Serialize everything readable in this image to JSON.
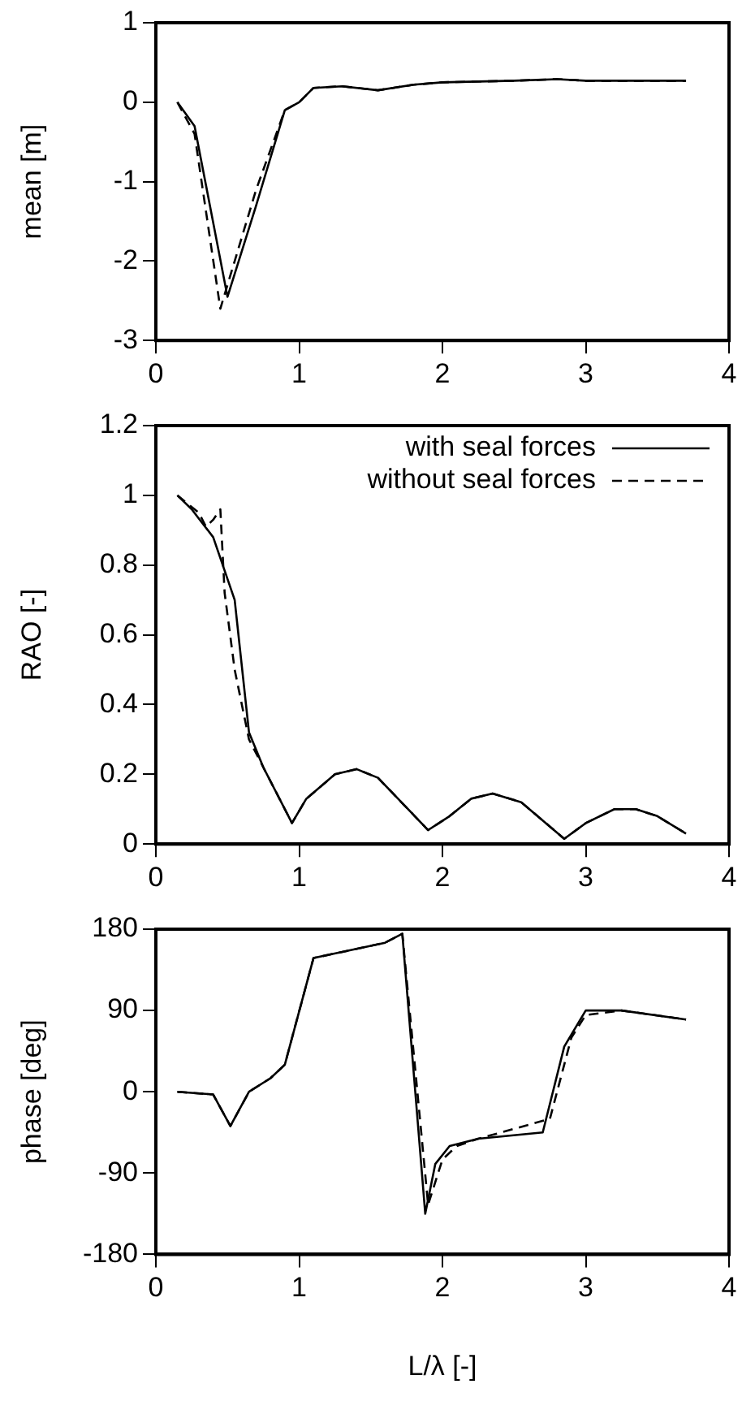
{
  "chart_data": [
    {
      "type": "line",
      "ylabel": "mean [m]",
      "xlim": [
        0,
        4
      ],
      "xticks": [
        0,
        1,
        2,
        3,
        4
      ],
      "ylim": [
        -3,
        1
      ],
      "yticks": [
        -3,
        -2,
        -1,
        0,
        1
      ],
      "grid": false,
      "legend": false,
      "marker": "none",
      "series": [
        {
          "color": "#000000",
          "line_style": "solid",
          "x": [
            0.15,
            0.27,
            0.5,
            0.7,
            0.9,
            1.0,
            1.1,
            1.3,
            1.55,
            1.8,
            2.0,
            2.5,
            2.8,
            3.0,
            3.7
          ],
          "values": [
            0.0,
            -0.3,
            -2.45,
            -1.3,
            -0.1,
            0.0,
            0.18,
            0.2,
            0.15,
            0.22,
            0.25,
            0.27,
            0.29,
            0.27,
            0.27
          ]
        },
        {
          "color": "#000000",
          "line_style": "dashed",
          "x": [
            0.15,
            0.27,
            0.45,
            0.7,
            0.9,
            1.0,
            1.1,
            1.3,
            1.55,
            1.8,
            2.0,
            2.5,
            2.8,
            3.0,
            3.7
          ],
          "values": [
            0.0,
            -0.4,
            -2.6,
            -1.1,
            -0.1,
            0.0,
            0.18,
            0.2,
            0.15,
            0.22,
            0.25,
            0.27,
            0.29,
            0.27,
            0.27
          ]
        }
      ]
    },
    {
      "type": "line",
      "ylabel": "RAO [-]",
      "xlim": [
        0,
        4
      ],
      "xticks": [
        0,
        1,
        2,
        3,
        4
      ],
      "ylim": [
        0,
        1.2
      ],
      "yticks": [
        0,
        0.2,
        0.4,
        0.6,
        0.8,
        1,
        1.2
      ],
      "grid": false,
      "legend": "top right",
      "marker": "none",
      "series": [
        {
          "name": "with seal forces",
          "color": "#000000",
          "line_style": "solid",
          "x": [
            0.15,
            0.25,
            0.4,
            0.5,
            0.55,
            0.65,
            0.75,
            0.95,
            1.05,
            1.25,
            1.4,
            1.55,
            1.9,
            2.05,
            2.2,
            2.35,
            2.55,
            2.85,
            3.0,
            3.2,
            3.35,
            3.5,
            3.7
          ],
          "values": [
            1.0,
            0.96,
            0.88,
            0.76,
            0.7,
            0.32,
            0.22,
            0.06,
            0.13,
            0.2,
            0.215,
            0.19,
            0.04,
            0.08,
            0.13,
            0.145,
            0.12,
            0.015,
            0.06,
            0.1,
            0.1,
            0.08,
            0.03
          ]
        },
        {
          "name": "without seal forces",
          "color": "#000000",
          "line_style": "dashed",
          "x": [
            0.15,
            0.3,
            0.35,
            0.4,
            0.45,
            0.48,
            0.55,
            0.65,
            0.75,
            0.95,
            1.05,
            1.25,
            1.4,
            1.55,
            1.9,
            2.05,
            2.2,
            2.35,
            2.55,
            2.85,
            3.0,
            3.2,
            3.35,
            3.5,
            3.7
          ],
          "values": [
            1.0,
            0.95,
            0.91,
            0.93,
            0.96,
            0.72,
            0.5,
            0.3,
            0.22,
            0.06,
            0.13,
            0.2,
            0.215,
            0.19,
            0.04,
            0.08,
            0.13,
            0.145,
            0.12,
            0.015,
            0.06,
            0.1,
            0.1,
            0.08,
            0.03
          ]
        }
      ]
    },
    {
      "type": "line",
      "ylabel": "phase [deg]",
      "xlabel": "L/λ [-]",
      "xlim": [
        0,
        4
      ],
      "xticks": [
        0,
        1,
        2,
        3,
        4
      ],
      "ylim": [
        -180,
        180
      ],
      "yticks": [
        -180,
        -90,
        0,
        90,
        180
      ],
      "grid": false,
      "legend": false,
      "marker": "none",
      "series": [
        {
          "color": "#000000",
          "line_style": "solid",
          "x": [
            0.15,
            0.4,
            0.52,
            0.65,
            0.8,
            0.9,
            1.1,
            1.6,
            1.72,
            1.88,
            1.95,
            2.05,
            2.25,
            2.7,
            2.85,
            3.0,
            3.25,
            3.7
          ],
          "values": [
            0,
            -3,
            -38,
            0,
            15,
            30,
            148,
            165,
            175,
            -135,
            -80,
            -60,
            -52,
            -45,
            50,
            90,
            90,
            80
          ]
        },
        {
          "color": "#000000",
          "line_style": "dashed",
          "x": [
            0.15,
            0.4,
            0.52,
            0.65,
            0.8,
            0.9,
            1.1,
            1.6,
            1.72,
            1.9,
            2.0,
            2.1,
            2.25,
            2.75,
            2.9,
            3.0,
            3.25,
            3.7
          ],
          "values": [
            0,
            -3,
            -38,
            0,
            15,
            30,
            148,
            165,
            175,
            -125,
            -75,
            -60,
            -52,
            -30,
            60,
            85,
            90,
            80
          ]
        }
      ]
    }
  ]
}
